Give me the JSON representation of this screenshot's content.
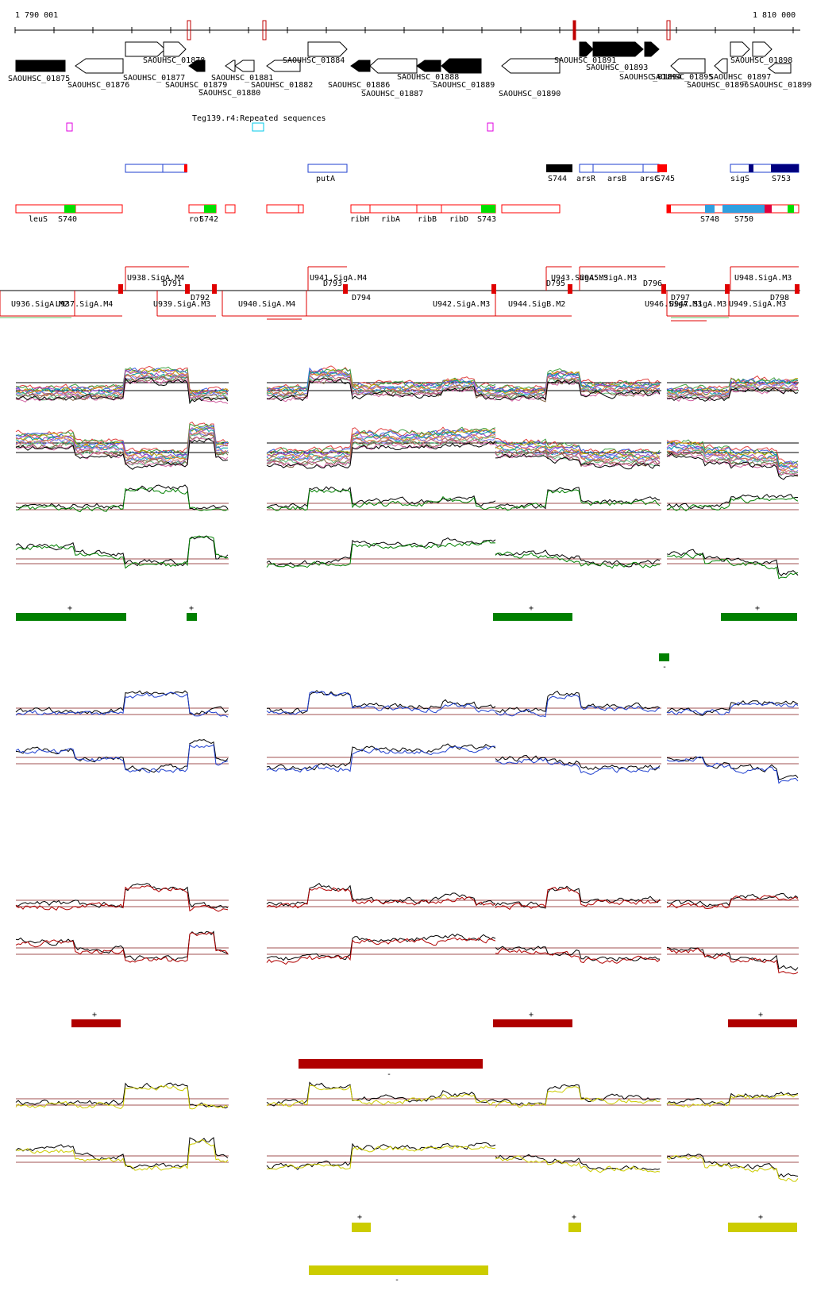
{
  "coords": {
    "start": "1 790 001",
    "end": "1 810 000"
  },
  "genes": [
    {
      "label": "SAOUHSC_01875",
      "strand": "-",
      "fill": "#000000"
    },
    {
      "label": "SAOUHSC_01876",
      "strand": "-",
      "fill": "#ffffff"
    },
    {
      "label": "SAOUHSC_01877",
      "strand": "+",
      "fill": "#ffffff"
    },
    {
      "label": "SAOUHSC_01878",
      "strand": "+",
      "fill": "#ffffff"
    },
    {
      "label": "SAOUHSC_01879",
      "strand": "-",
      "fill": "#000000"
    },
    {
      "label": "SAOUHSC_01880",
      "strand": "-",
      "fill": "#ffffff"
    },
    {
      "label": "SAOUHSC_01881",
      "strand": "-",
      "fill": "#ffffff"
    },
    {
      "label": "SAOUHSC_01882",
      "strand": "-",
      "fill": "#ffffff"
    },
    {
      "label": "SAOUHSC_01884",
      "strand": "+",
      "fill": "#ffffff"
    },
    {
      "label": "SAOUHSC_01886",
      "strand": "-",
      "fill": "#000000"
    },
    {
      "label": "SAOUHSC_01887",
      "strand": "-",
      "fill": "#ffffff"
    },
    {
      "label": "SAOUHSC_01888",
      "strand": "-",
      "fill": "#000000"
    },
    {
      "label": "SAOUHSC_01889",
      "strand": "-",
      "fill": "#000000"
    },
    {
      "label": "SAOUHSC_01890",
      "strand": "-",
      "fill": "#ffffff"
    },
    {
      "label": "SAOUHSC_01891",
      "strand": "+",
      "fill": "#000000"
    },
    {
      "label": "SAOUHSC_01893",
      "strand": "+",
      "fill": "#000000"
    },
    {
      "label": "SAOUHSC_01894",
      "strand": "+",
      "fill": "#000000"
    },
    {
      "label": "SAOUHSC_01895",
      "strand": "-",
      "fill": "#ffffff"
    },
    {
      "label": "SAOUHSC_01896",
      "strand": "-",
      "fill": "#ffffff"
    },
    {
      "label": "SAOUHSC_01897",
      "strand": "+",
      "fill": "#ffffff"
    },
    {
      "label": "SAOUHSC_01898",
      "strand": "+",
      "fill": "#ffffff"
    },
    {
      "label": "SAOUHSC_01899",
      "strand": "-",
      "fill": "#ffffff"
    }
  ],
  "repeat_track": {
    "label": "Teg139.r4:Repeated sequences"
  },
  "feature_labels_plus": [
    "putA",
    "S744",
    "arsR",
    "arsB",
    "arsC",
    "S745",
    "sigS",
    "S753"
  ],
  "feature_labels_minus": [
    "leuS",
    "S740",
    "rot",
    "S742",
    "ribH",
    "ribA",
    "ribB",
    "ribD",
    "S743",
    "S748",
    "S750"
  ],
  "transcription_units": [
    "U936.SigA.M2",
    "U937.SigA.M4",
    "U938.SigA.M4",
    "U939.SigA.M3",
    "U940.SigA.M4",
    "U941.SigA.M4",
    "U942.SigA.M3",
    "U943.SigA.M3",
    "U944.SigB.M2",
    "U945.SigA.M3",
    "U946.SigA.M3",
    "U947.SigA.M3",
    "U948.SigA.M3",
    "U949.SigA.M3"
  ],
  "downstream_sites": [
    "D791",
    "D792",
    "D793",
    "D794",
    "D795",
    "D796",
    "D797",
    "D798"
  ],
  "strand_marks": {
    "plus": "+",
    "minus": "-"
  },
  "condition_colors": {
    "all": "multicolor",
    "green": "#008000",
    "blue": "#1f3fcf",
    "red": "#b00000",
    "yellow": "#cccc00"
  }
}
